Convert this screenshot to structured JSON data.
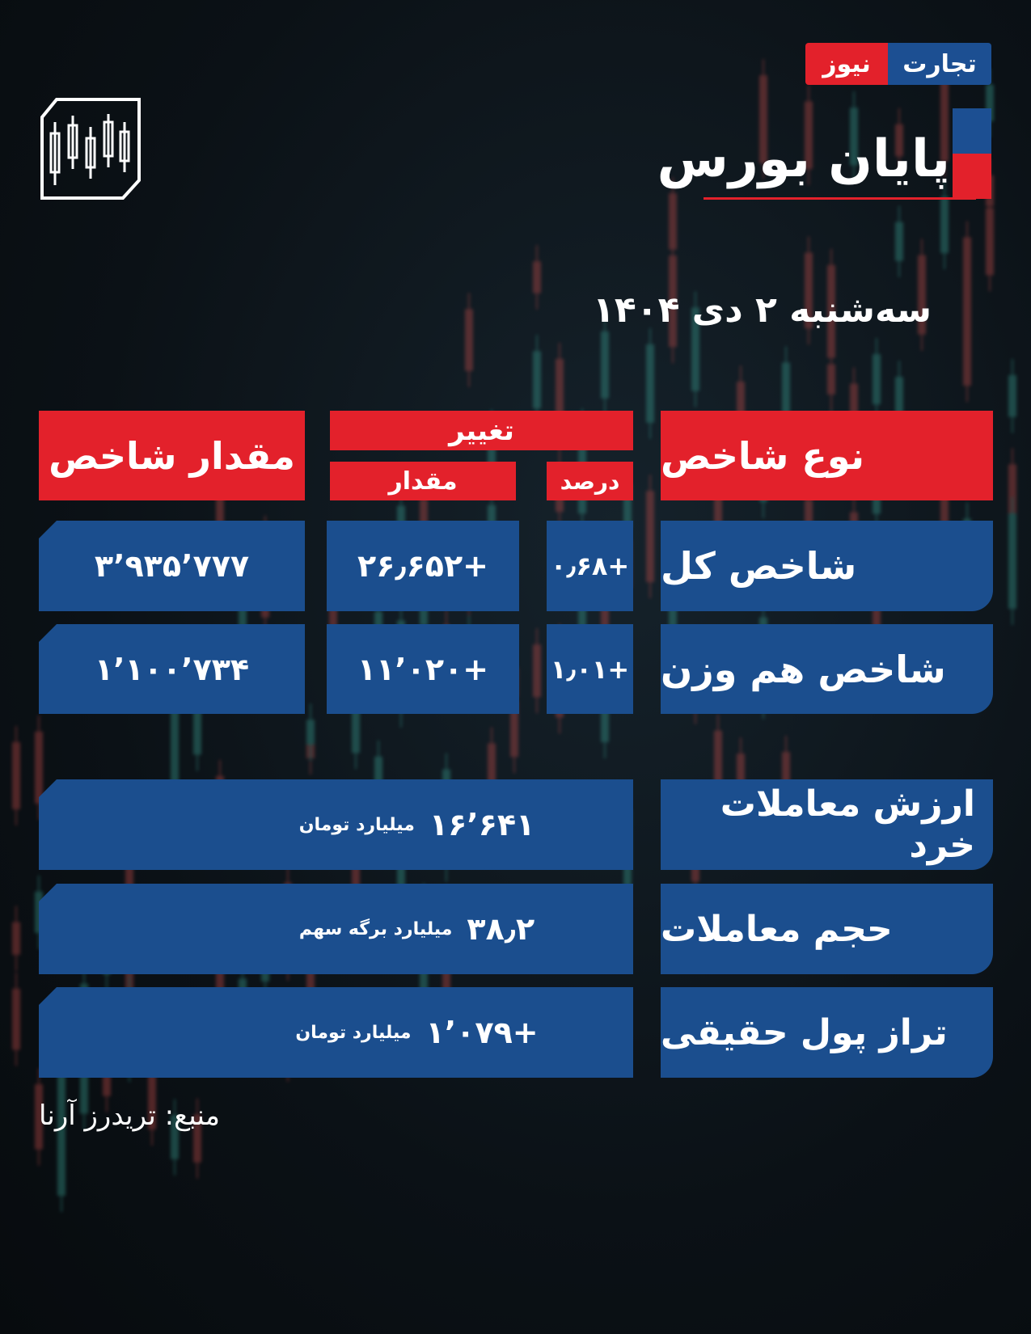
{
  "logo": {
    "part1": "تجارت",
    "part2": "نیوز",
    "colors": {
      "blue": "#1c4f92",
      "red": "#e3212b"
    }
  },
  "icon": "candlestick-chart-icon",
  "title": "پایان بورس",
  "date": "سه‌شنبه ۲ دی ۱۴۰۴",
  "table": {
    "headers": {
      "index_value": "مقدار شاخص",
      "change": "تغییر",
      "change_amount": "مقدار",
      "change_percent": "درصد",
      "index_type": "نوع شاخص"
    },
    "rows": [
      {
        "type": "شاخص کل",
        "percent": "+۰٫۶۸",
        "amount": "+۲۶٫۶۵۲",
        "value": "۳٬۹۳۵٬۷۷۷"
      },
      {
        "type": "شاخص هم وزن",
        "percent": "+۱٫۰۱",
        "amount": "+۱۱٬۰۲۰",
        "value": "۱٬۱۰۰٬۷۳۴"
      }
    ]
  },
  "stats": [
    {
      "label": "ارزش معاملات خرد",
      "value": "۱۶٬۶۴۱",
      "unit": "میلیارد تومان"
    },
    {
      "label": "حجم معاملات",
      "value": "۳۸٫۲",
      "unit": "میلیارد برگه سهم"
    },
    {
      "label": "تراز پول حقیقی",
      "value": "+۱٬۰۷۹",
      "unit": "میلیارد تومان"
    }
  ],
  "source": "منبع: تریدرز آرنا",
  "colors": {
    "header_red": "#e3212b",
    "cell_blue": "#1b4e8e",
    "background": "#0b1116"
  }
}
